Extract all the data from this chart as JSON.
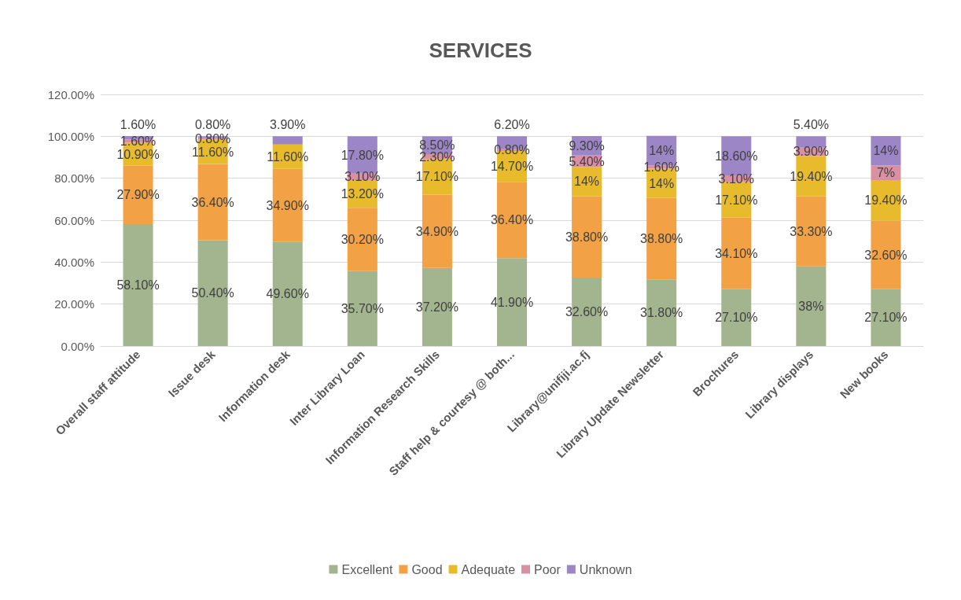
{
  "chart_data": {
    "type": "bar",
    "title": "SERVICES",
    "stacked": true,
    "grid": "y",
    "legend": "bottom",
    "categories": [
      "Overall staff attitude",
      "Issue desk",
      "Information desk",
      "Inter Library Loan",
      "Information Research Skills",
      "Staff help & courtesy @ both...",
      "Library@unifiji.ac.fj",
      "Library Update Newsletter",
      "Brochures",
      "Library displays",
      "New books"
    ],
    "ylim": [
      0,
      120
    ],
    "yticks": [
      {
        "value": 0,
        "label": "0.00%"
      },
      {
        "value": 20,
        "label": "20.00%"
      },
      {
        "value": 40,
        "label": "40.00%"
      },
      {
        "value": 60,
        "label": "60.00%"
      },
      {
        "value": 80,
        "label": "80.00%"
      },
      {
        "value": 100,
        "label": "100.00%"
      },
      {
        "value": 120,
        "label": "120.00%"
      }
    ],
    "series": [
      {
        "name": "Excellent",
        "color": "#a2b58e",
        "values": [
          58.1,
          50.4,
          49.6,
          35.7,
          37.2,
          41.9,
          32.6,
          31.8,
          27.1,
          38,
          27.1
        ],
        "value_labels": [
          "58.10%",
          "50.40%",
          "49.60%",
          "35.70%",
          "37.20%",
          "41.90%",
          "32.60%",
          "31.80%",
          "27.10%",
          "38%",
          "27.10%"
        ]
      },
      {
        "name": "Good",
        "color": "#f2a144",
        "values": [
          27.9,
          36.4,
          34.9,
          30.2,
          34.9,
          36.4,
          38.8,
          38.8,
          34.1,
          33.3,
          32.6
        ],
        "value_labels": [
          "27.90%",
          "36.40%",
          "34.90%",
          "30.20%",
          "34.90%",
          "36.40%",
          "38.80%",
          "38.80%",
          "34.10%",
          "33.30%",
          "32.60%"
        ]
      },
      {
        "name": "Adequate",
        "color": "#e8bb2c",
        "values": [
          10.9,
          11.6,
          11.6,
          13.2,
          17.1,
          14.7,
          14,
          14,
          17.1,
          19.4,
          19.4
        ],
        "value_labels": [
          "10.90%",
          "11.60%",
          "11.60%",
          "13.20%",
          "17.10%",
          "14.70%",
          "14%",
          "14%",
          "17.10%",
          "19.40%",
          "19.40%"
        ]
      },
      {
        "name": "Poor",
        "color": "#d990a3",
        "values": [
          1.6,
          0.8,
          null,
          3.1,
          2.3,
          0.8,
          5.4,
          1.6,
          3.1,
          3.9,
          7
        ],
        "value_labels": [
          "1.60%",
          "0.80%",
          null,
          "3.10%",
          "2.30%",
          "0.80%",
          "5.40%",
          "1.60%",
          "3.10%",
          "3.90%",
          "7%"
        ]
      },
      {
        "name": "Unknown",
        "color": "#9d86c6",
        "values": [
          1.6,
          0.8,
          3.9,
          17.8,
          8.5,
          6.2,
          9.3,
          14,
          18.6,
          5.4,
          14
        ],
        "value_labels": [
          "1.60%",
          "0.80%",
          "3.90%",
          "17.80%",
          "8.50%",
          "6.20%",
          "9.30%",
          "14%",
          "18.60%",
          "5.40%",
          "14%"
        ]
      }
    ]
  }
}
